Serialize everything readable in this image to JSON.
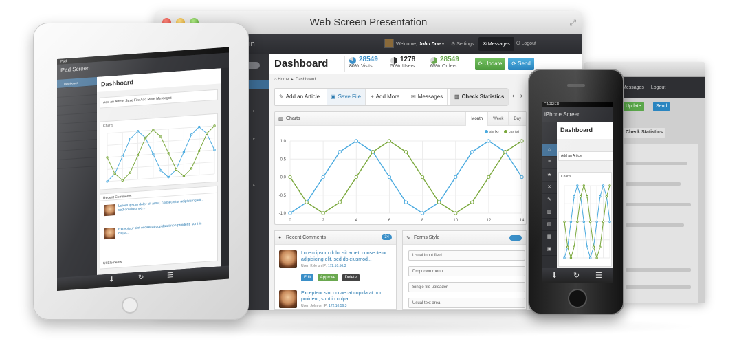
{
  "window": {
    "title": "Web Screen Presentation",
    "brand_tail": "min"
  },
  "topbar": {
    "welcome_prefix": "Welcome,",
    "user_name": "John Doe",
    "settings_label": "Settings",
    "messages_label": "Messages",
    "logout_label": "Logout"
  },
  "dashboard": {
    "title": "Dashboard",
    "stats": [
      {
        "value": "28549",
        "percent": "80%",
        "label": "Visits",
        "color": "#3a8fc8"
      },
      {
        "value": "1278",
        "percent": "50%",
        "label": "Users",
        "color": "#333333"
      },
      {
        "value": "28549",
        "percent": "65%",
        "label": "Orders",
        "color": "#6aa84f"
      }
    ],
    "update_label": "Update",
    "send_label": "Send",
    "breadcrumb": {
      "home": "Home",
      "current": "Dashboard"
    },
    "actions": {
      "add_article": "Add an Article",
      "save_file": "Save File",
      "add_more": "Add More",
      "messages": "Messages",
      "check_statistics": "Check Statistics"
    }
  },
  "charts_panel": {
    "title": "Charts",
    "tabs": [
      "Month",
      "Week",
      "Day"
    ]
  },
  "chart_data": {
    "type": "line",
    "title": "Charts",
    "xlabel": "",
    "ylabel": "",
    "xlim": [
      0,
      14
    ],
    "ylim": [
      -1.0,
      1.0
    ],
    "x_ticks": [
      "0",
      "2",
      "4",
      "6",
      "8",
      "10",
      "12",
      "14"
    ],
    "y_ticks": [
      "1.0",
      "0.5",
      "0.0",
      "-0.5",
      "-1.0"
    ],
    "grid": true,
    "legend": "top-right",
    "series": [
      {
        "name": "sin (x)",
        "color": "#4aaadf",
        "x": [
          0,
          1,
          2,
          3,
          4,
          5,
          6,
          7,
          8,
          9,
          10,
          11,
          12,
          13,
          14
        ],
        "y": [
          -1.0,
          -0.7,
          0.0,
          0.7,
          1.0,
          0.7,
          0.0,
          -0.7,
          -1.0,
          -0.7,
          0.0,
          0.7,
          1.0,
          0.7,
          0.0
        ]
      },
      {
        "name": "cos (x)",
        "color": "#7aa83c",
        "x": [
          0,
          1,
          2,
          3,
          4,
          5,
          6,
          7,
          8,
          9,
          10,
          11,
          12,
          13,
          14
        ],
        "y": [
          0.0,
          -0.7,
          -1.0,
          -0.7,
          0.0,
          0.7,
          1.0,
          0.7,
          0.0,
          -0.7,
          -1.0,
          -0.7,
          0.0,
          0.7,
          1.0
        ]
      }
    ]
  },
  "comments_panel": {
    "title": "Recent Comments",
    "count": "34",
    "items": [
      {
        "text": "Lorem ipsum dolor sit amet, consectetur adipisicing elit, sed do eiusmod...",
        "user_prefix": "User:",
        "user": "Kyle",
        "ip_prefix": "on IP:",
        "ip": "172.10.56.3",
        "edit": "Edit",
        "approve": "Approve",
        "delete": "Delete"
      },
      {
        "text": "Excepteur sint occaecat cupidatat non proident, sunt in culpa...",
        "user_prefix": "User:",
        "user": "John",
        "ip_prefix": "on IP:",
        "ip": "172.10.56.3"
      }
    ]
  },
  "forms_panel": {
    "title": "Forms Style",
    "fields": [
      "Usual input field",
      "Dropdown menu",
      "Single file uploader",
      "Usual text area"
    ]
  },
  "ipad": {
    "carrier": "iPad",
    "brand": "iPad Screen",
    "dashboard_title": "Dashboard",
    "side_items": [
      "Dashboard",
      "",
      "",
      "",
      "",
      "",
      "",
      "",
      "",
      "",
      ""
    ],
    "actions": "Add an Article   Save File   Add More   Messages",
    "charts_label": "Charts",
    "comments_title": "Recent Comments",
    "comments": [
      "Lorem ipsum dolor sit amet, consectetur adipisicing elit, sed do eiusmod...",
      "Excepteur sint occaecat cupidatat non proident, sunt in culpa..."
    ],
    "ui_elements": "UI Elements"
  },
  "iphone": {
    "carrier": "CARRIER",
    "brand": "iPhone Screen",
    "dashboard_title": "Dashboard",
    "add_article": "Add an Article",
    "charts_label": "Charts"
  },
  "win2": {
    "messages_label": "Messages",
    "logout_label": "Logout",
    "update_label": "Update",
    "send_label": "Send",
    "check_statistics": "Check Statistics"
  },
  "icons": {
    "download": "⬇",
    "refresh": "↻",
    "list": "☰"
  }
}
